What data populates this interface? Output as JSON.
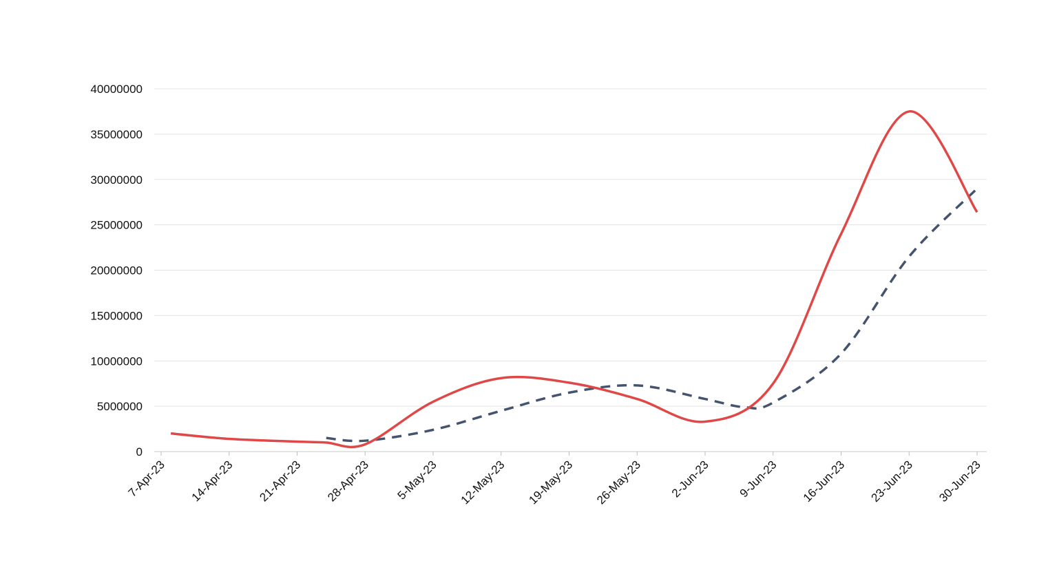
{
  "chart_data": {
    "type": "line",
    "title": "",
    "xlabel": "",
    "ylabel": "",
    "grid": true,
    "legend": "none",
    "ylim": [
      0,
      40000000
    ],
    "y_ticks": [
      "0",
      "5000000",
      "10000000",
      "15000000",
      "20000000",
      "25000000",
      "30000000",
      "35000000",
      "40000000"
    ],
    "x_ticks": [
      "7-Apr-23",
      "14-Apr-23",
      "21-Apr-23",
      "28-Apr-23",
      "5-May-23",
      "12-May-23",
      "19-May-23",
      "26-May-23",
      "2-Jun-23",
      "9-Jun-23",
      "16-Jun-23",
      "23-Jun-23",
      "30-Jun-23"
    ],
    "xlim": [
      "2023-04-07",
      "2023-06-30"
    ],
    "series": [
      {
        "color": "#e04848",
        "style": "solid",
        "points": [
          {
            "x": "2023-04-08",
            "y": 2000000
          },
          {
            "x": "2023-04-14",
            "y": 1400000
          },
          {
            "x": "2023-04-21",
            "y": 1100000
          },
          {
            "x": "2023-04-24",
            "y": 1000000
          },
          {
            "x": "2023-04-28",
            "y": 800000
          },
          {
            "x": "2023-05-05",
            "y": 5500000
          },
          {
            "x": "2023-05-12",
            "y": 8100000
          },
          {
            "x": "2023-05-19",
            "y": 7600000
          },
          {
            "x": "2023-05-26",
            "y": 5800000
          },
          {
            "x": "2023-06-02",
            "y": 3300000
          },
          {
            "x": "2023-06-09",
            "y": 7500000
          },
          {
            "x": "2023-06-16",
            "y": 24000000
          },
          {
            "x": "2023-06-23",
            "y": 37500000
          },
          {
            "x": "2023-06-30",
            "y": 26400000
          }
        ]
      },
      {
        "color": "#45546e",
        "style": "dashed",
        "points": [
          {
            "x": "2023-04-24",
            "y": 1500000
          },
          {
            "x": "2023-04-28",
            "y": 1200000
          },
          {
            "x": "2023-05-05",
            "y": 2400000
          },
          {
            "x": "2023-05-12",
            "y": 4500000
          },
          {
            "x": "2023-05-19",
            "y": 6500000
          },
          {
            "x": "2023-05-26",
            "y": 7300000
          },
          {
            "x": "2023-06-02",
            "y": 5800000
          },
          {
            "x": "2023-06-06",
            "y": 4900000
          },
          {
            "x": "2023-06-09",
            "y": 5400000
          },
          {
            "x": "2023-06-16",
            "y": 10800000
          },
          {
            "x": "2023-06-23",
            "y": 21500000
          },
          {
            "x": "2023-06-30",
            "y": 29000000
          }
        ]
      }
    ]
  }
}
